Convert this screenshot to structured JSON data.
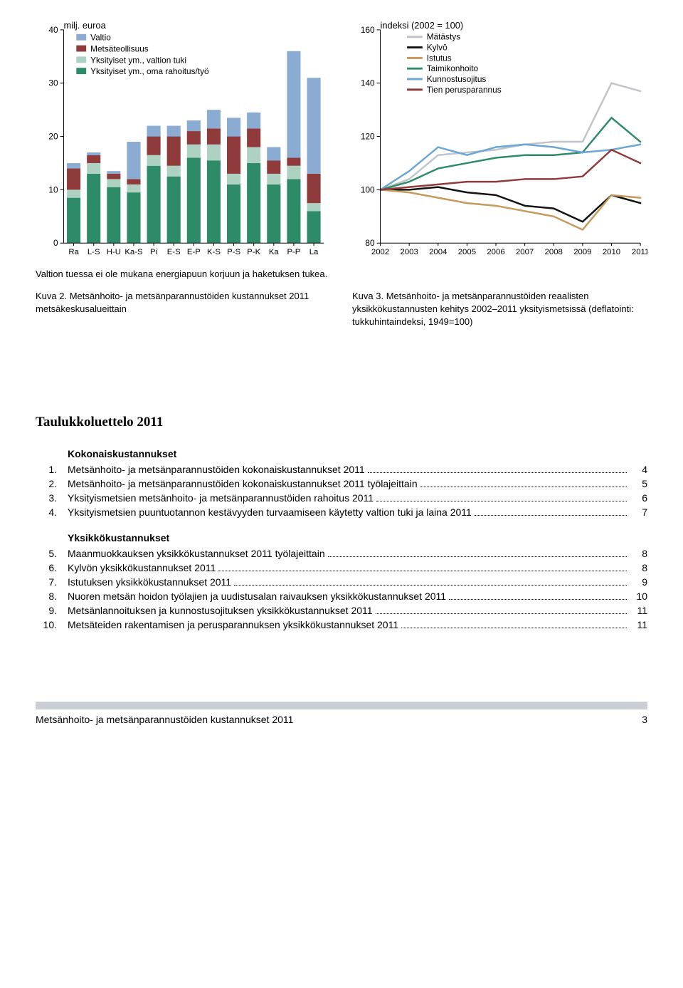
{
  "bar_chart": {
    "type": "stacked-bar",
    "y_label_top": "milj. euroa",
    "ylim": [
      0,
      40
    ],
    "yticks": [
      0,
      10,
      20,
      30,
      40
    ],
    "categories": [
      "Ra",
      "L-S",
      "H-U",
      "Ka-S",
      "Pi",
      "E-S",
      "E-P",
      "K-S",
      "P-S",
      "P-K",
      "Ka",
      "P-P",
      "La"
    ],
    "legend": [
      {
        "label": "Valtio",
        "color": "#8aacd3"
      },
      {
        "label": "Metsäteollisuus",
        "color": "#8f3b3b"
      },
      {
        "label": "Yksityiset ym., valtion tuki",
        "color": "#aed2c1"
      },
      {
        "label": "Yksityiset ym., oma rahoitus/työ",
        "color": "#2e8b67"
      }
    ],
    "series": {
      "own": [
        8.5,
        13.0,
        10.5,
        9.5,
        14.5,
        12.5,
        16.0,
        15.5,
        11.0,
        15.0,
        11.0,
        12.0,
        6.0
      ],
      "tuki": [
        1.5,
        2.0,
        1.5,
        1.5,
        2.0,
        2.0,
        2.5,
        3.0,
        2.0,
        3.0,
        2.0,
        2.5,
        1.5
      ],
      "teoll": [
        4.0,
        1.5,
        1.0,
        1.0,
        3.5,
        5.5,
        2.5,
        3.0,
        7.0,
        3.5,
        2.5,
        1.5,
        5.5
      ],
      "valtio": [
        1.0,
        0.5,
        0.5,
        7.0,
        2.0,
        2.0,
        2.0,
        3.5,
        3.5,
        3.0,
        2.5,
        20.0,
        18.0
      ]
    },
    "colors": {
      "own": "#2e8b67",
      "tuki": "#aed2c1",
      "teoll": "#8f3b3b",
      "valtio": "#8aacd3"
    },
    "axis_color": "#000",
    "grid_color": "#e0e0e0",
    "font_size_ticks": 12,
    "font_size_label": 13,
    "bar_width_ratio": 0.68
  },
  "line_chart": {
    "type": "line",
    "y_label_top": "indeksi (2002 = 100)",
    "ylim": [
      80,
      160
    ],
    "yticks": [
      80,
      100,
      120,
      140,
      160
    ],
    "xvalues": [
      2002,
      2003,
      2004,
      2005,
      2006,
      2007,
      2008,
      2009,
      2010,
      2011
    ],
    "legend": [
      {
        "label": "Mätästys",
        "color": "#c1c5c9"
      },
      {
        "label": "Kylvö",
        "color": "#111111"
      },
      {
        "label": "Istutus",
        "color": "#c59a5b"
      },
      {
        "label": "Taimikonhoito",
        "color": "#2e8b67"
      },
      {
        "label": "Kunnostusojitus",
        "color": "#6aa6d6"
      },
      {
        "label": "Tien perusparannus",
        "color": "#8f3b3b"
      }
    ],
    "series": {
      "Mätästys": [
        100,
        104,
        113,
        114,
        115,
        117,
        118,
        118,
        140,
        137
      ],
      "Kylvö": [
        100,
        100,
        101,
        99,
        98,
        94,
        93,
        88,
        98,
        95
      ],
      "Istutus": [
        100,
        99,
        97,
        95,
        94,
        92,
        90,
        85,
        98,
        97
      ],
      "Taimikonhoito": [
        100,
        103,
        108,
        110,
        112,
        113,
        113,
        114,
        127,
        118
      ],
      "Kunnostusojitus": [
        100,
        107,
        116,
        113,
        116,
        117,
        116,
        114,
        115,
        117
      ],
      "Tien perusparannus": [
        100,
        101,
        102,
        103,
        103,
        104,
        104,
        105,
        115,
        110
      ]
    },
    "axis_color": "#000",
    "line_width": 2.5,
    "font_size_ticks": 12,
    "font_size_label": 13
  },
  "bar_note": "Valtion tuessa ei ole mukana energiapuun korjuun ja haketuksen tukea.",
  "bar_caption": "Kuva 2. Metsänhoito- ja metsänparannustöiden kustannukset 2011 metsäkeskusalueittain",
  "line_caption": "Kuva 3. Metsänhoito- ja metsänparannustöiden reaalisten yksikkökustannusten kehitys 2002–2011 yksityismetsissä (deflatointi: tukkuhintaindeksi, 1949=100)",
  "toc_title": "Taulukkoluettelo 2011",
  "toc": [
    {
      "section": "Kokonaiskustannukset"
    },
    {
      "n": "1.",
      "t": "Metsänhoito- ja metsänparannustöiden kokonaiskustannukset 2011",
      "p": "4"
    },
    {
      "n": "2.",
      "t": "Metsänhoito- ja metsänparannustöiden kokonaiskustannukset 2011 työlajeittain",
      "p": "5"
    },
    {
      "n": "3.",
      "t": "Yksityismetsien metsänhoito- ja metsänparannustöiden rahoitus 2011",
      "p": "6"
    },
    {
      "n": "4.",
      "t": "Yksityismetsien puuntuotannon kestävyyden turvaamiseen käytetty valtion tuki ja laina 2011",
      "p": "7"
    },
    {
      "section": "Yksikkökustannukset"
    },
    {
      "n": "5.",
      "t": "Maanmuokkauksen yksikkökustannukset 2011 työlajeittain",
      "p": "8"
    },
    {
      "n": "6.",
      "t": "Kylvön yksikkökustannukset 2011",
      "p": "8"
    },
    {
      "n": "7.",
      "t": "Istutuksen yksikkökustannukset 2011",
      "p": "9"
    },
    {
      "n": "8.",
      "t": "Nuoren metsän hoidon työlajien ja uudistusalan raivauksen yksikkökustannukset 2011",
      "p": "10"
    },
    {
      "n": "9.",
      "t": "Metsänlannoituksen ja kunnostusojituksen yksikkökustannukset 2011",
      "p": "11"
    },
    {
      "n": "10.",
      "t": "Metsäteiden rakentamisen ja perusparannuksen yksikkökustannukset 2011",
      "p": "11"
    }
  ],
  "footer_title": "Metsänhoito- ja metsänparannustöiden kustannukset 2011",
  "footer_page": "3"
}
